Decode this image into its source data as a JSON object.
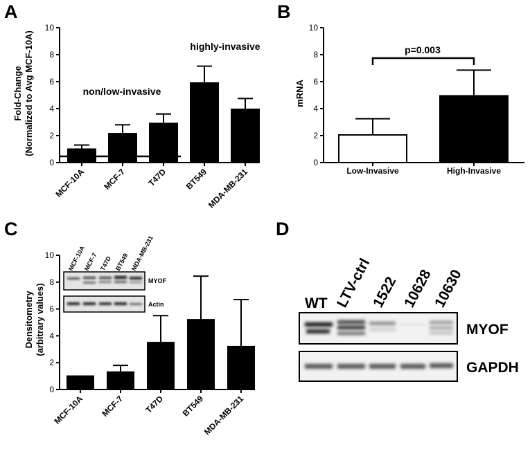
{
  "panels": {
    "A": "A",
    "B": "B",
    "C": "C",
    "D": "D"
  },
  "chart_data": [
    {
      "panel": "A",
      "type": "bar",
      "ylabel": "Fold-Change (Normalized to Avg MCF-10A)",
      "ylabel_lines": [
        "Fold-Change",
        "(Normalized to Avg MCF-10A)"
      ],
      "ylim": [
        0,
        10
      ],
      "yticks": [
        "0",
        "2",
        "4",
        "6",
        "8",
        "10"
      ],
      "categories": [
        "MCF-10A",
        "MCF-7",
        "T47D",
        "BT549",
        "MDA-MB-231"
      ],
      "values": [
        1.0,
        2.15,
        2.9,
        5.9,
        3.95
      ],
      "errors": [
        0.3,
        0.65,
        0.7,
        1.25,
        0.8
      ],
      "bar_color": "#000000",
      "annotations": [
        "non/low-invasive",
        "highly-invasive"
      ]
    },
    {
      "panel": "B",
      "type": "bar",
      "ylabel": "mRNA",
      "ylim": [
        0,
        10
      ],
      "yticks": [
        "0",
        "2",
        "4",
        "6",
        "8",
        "10"
      ],
      "categories": [
        "Low-Invasive",
        "High-Invasive"
      ],
      "values": [
        2.05,
        4.95
      ],
      "errors": [
        1.2,
        1.9
      ],
      "bar_fills": [
        "#ffffff",
        "#000000"
      ],
      "annotation": "p=0.003"
    },
    {
      "panel": "C",
      "type": "bar",
      "ylabel": "Densitometry (arbitrary values)",
      "ylabel_lines": [
        "Densitometry",
        "(arbitrary values)"
      ],
      "ylim": [
        0,
        10
      ],
      "yticks": [
        "0",
        "2",
        "4",
        "6",
        "8",
        "10"
      ],
      "categories": [
        "MCF-10A",
        "MCF-7",
        "T47D",
        "BT549",
        "MDA-MB-231"
      ],
      "values": [
        1.0,
        1.3,
        3.5,
        5.2,
        3.2
      ],
      "errors": [
        0.0,
        0.5,
        2.0,
        3.25,
        3.5
      ],
      "bar_color": "#000000",
      "inset_blot": {
        "lanes": [
          "MCF-10A",
          "MCF-7",
          "T47D",
          "BT549",
          "MDA-MB-231"
        ],
        "rows": [
          "MYOF",
          "Actin"
        ]
      }
    },
    {
      "panel": "D",
      "type": "blot",
      "lanes": [
        "WT",
        "LTV-ctrl",
        "1522",
        "10628",
        "10630"
      ],
      "rows": [
        "MYOF",
        "GAPDH"
      ]
    }
  ]
}
